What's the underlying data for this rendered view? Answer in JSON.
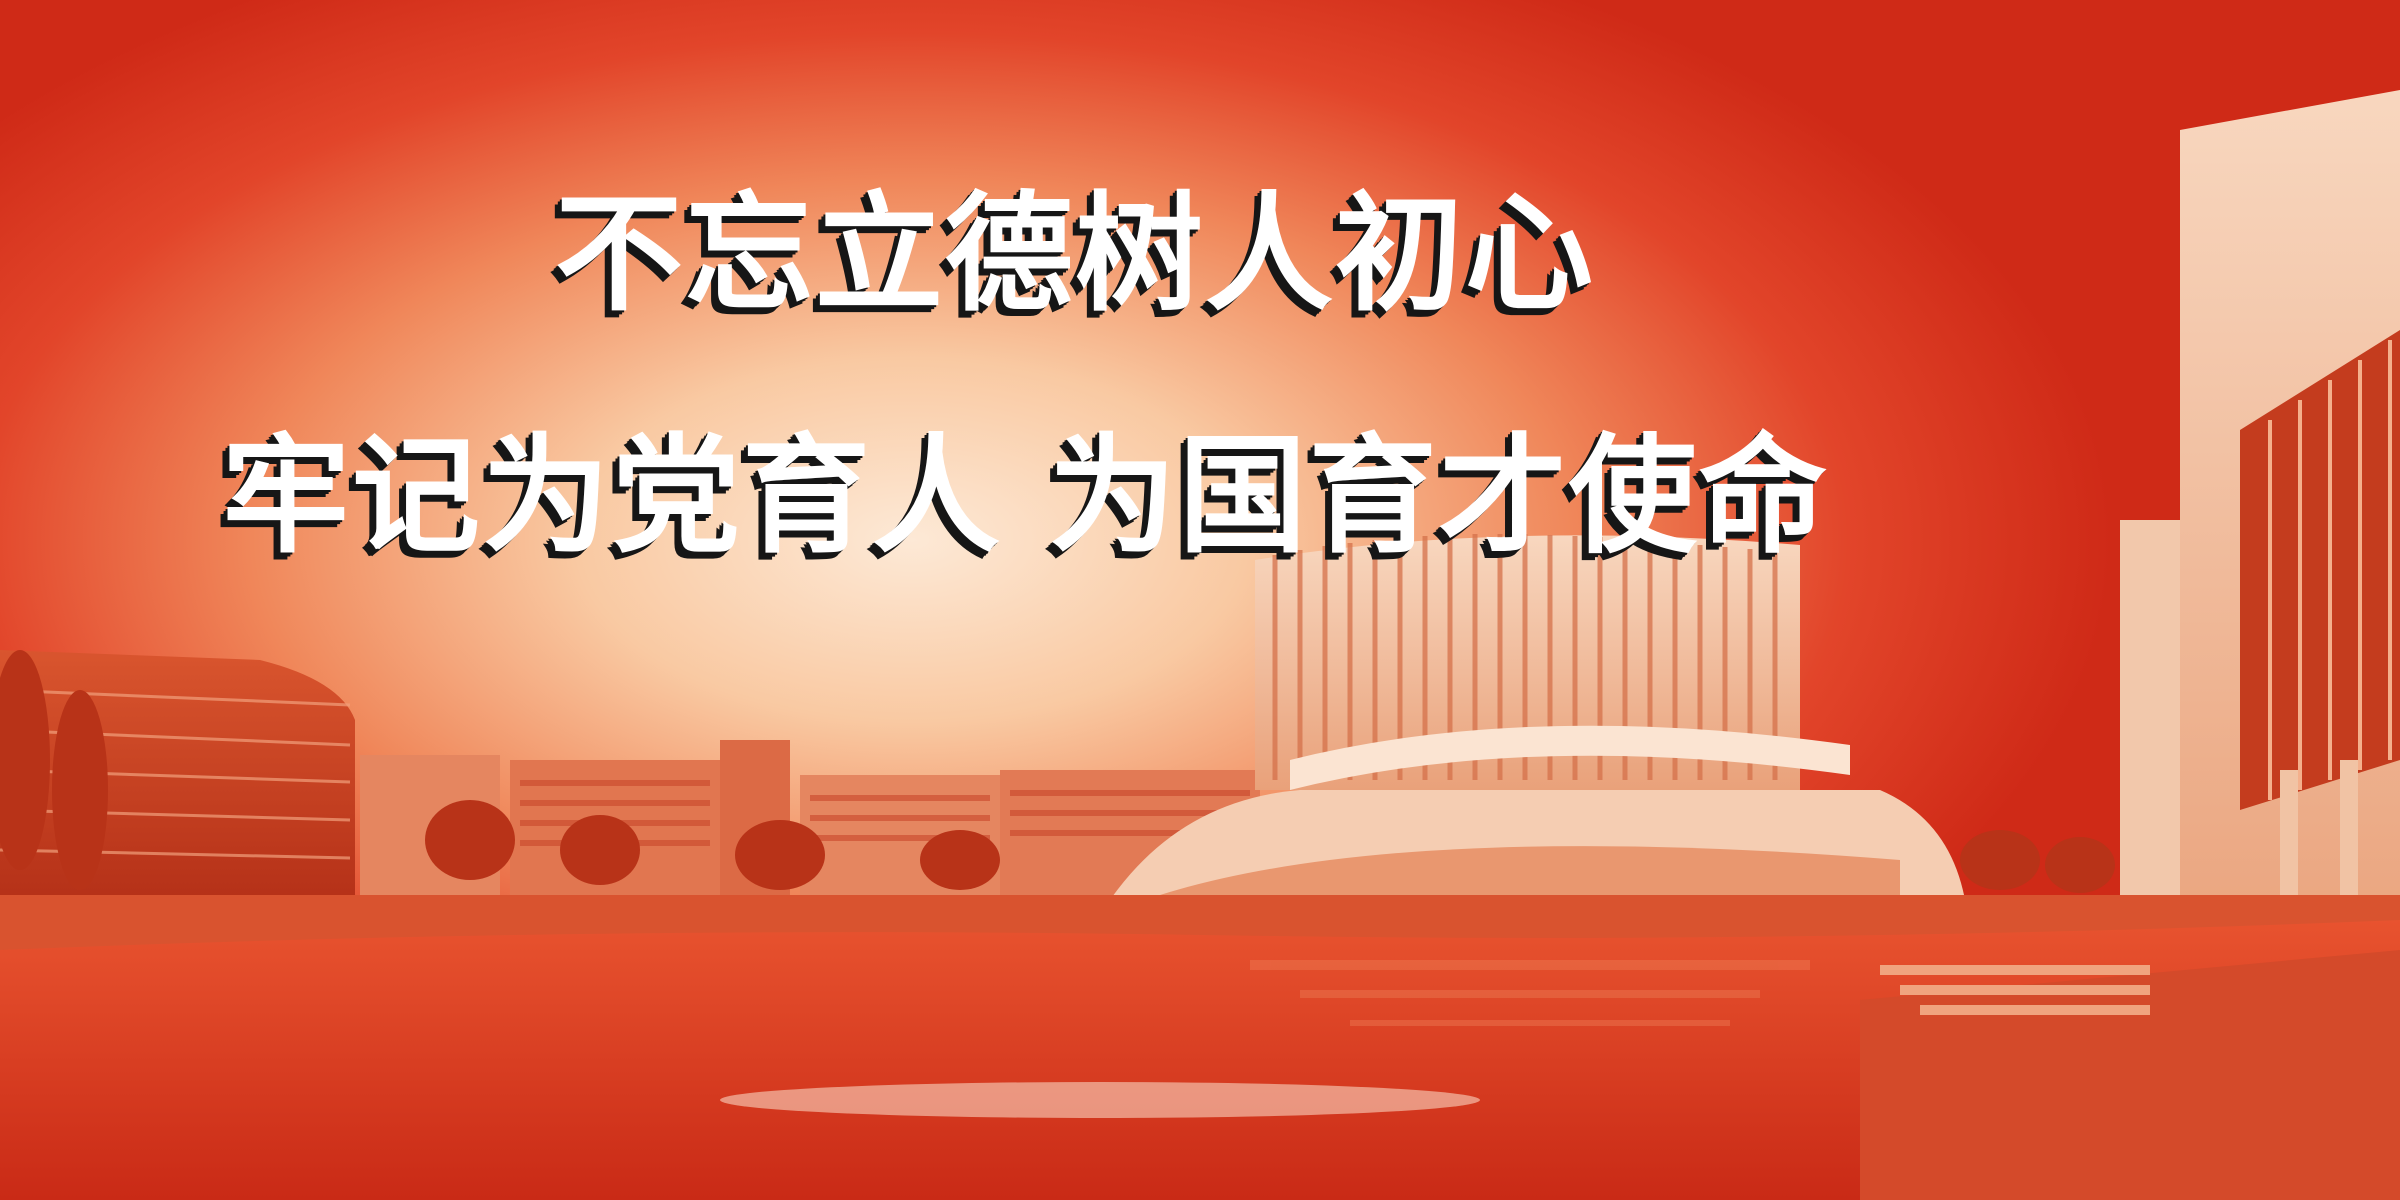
{
  "banner": {
    "slogan_line_1": "不忘立德树人初心",
    "slogan_line_2": "牢记为党育人 为国育才使命"
  },
  "colors": {
    "background_light": "#fde9d6",
    "background_mid": "#f0875a",
    "background_dark": "#cf2a17",
    "text": "#ffffff",
    "text_shadow": "#161616"
  }
}
